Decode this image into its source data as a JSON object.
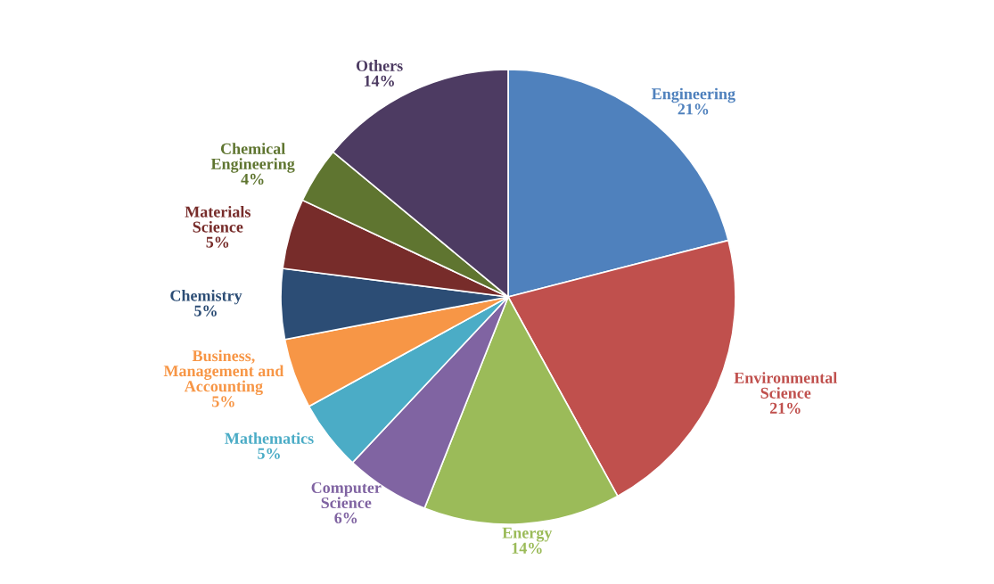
{
  "chart_data": {
    "type": "pie",
    "categories": [
      "Engineering",
      "Environmental Science",
      "Energy",
      "Computer Science",
      "Mathematics",
      "Business, Management and Accounting",
      "Chemistry",
      "Materials Science",
      "Chemical Engineering",
      "Others"
    ],
    "values": [
      21,
      21,
      14,
      6,
      5,
      5,
      5,
      5,
      4,
      14
    ],
    "value_labels": [
      "21%",
      "21%",
      "14%",
      "6%",
      "5%",
      "5%",
      "5%",
      "5%",
      "4%",
      "14%"
    ],
    "colors": [
      "#4f81bd",
      "#c0504d",
      "#9bbb59",
      "#8064a2",
      "#4bacc6",
      "#f79646",
      "#2c4d75",
      "#772c2a",
      "#5f7530",
      "#4d3b62"
    ],
    "legend": false
  }
}
